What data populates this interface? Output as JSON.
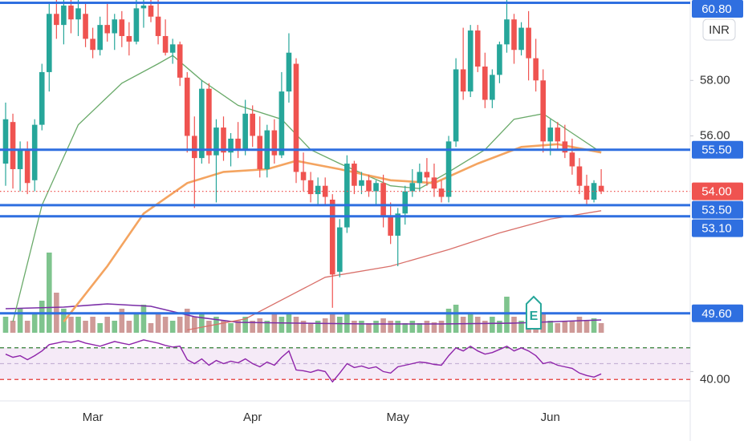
{
  "chart_data": {
    "type": "candlestick",
    "categories": [
      null,
      null,
      null,
      null,
      null,
      null,
      null,
      null,
      null,
      null,
      null,
      null,
      "Mar",
      null,
      null,
      null,
      null,
      null,
      null,
      null,
      null,
      null,
      null,
      null,
      null,
      null,
      null,
      null,
      null,
      null,
      null,
      null,
      null,
      null,
      "Apr",
      null,
      null,
      null,
      null,
      null,
      null,
      null,
      null,
      null,
      null,
      null,
      null,
      null,
      null,
      null,
      null,
      null,
      null,
      null,
      "May",
      null,
      null,
      null,
      null,
      null,
      null,
      null,
      null,
      null,
      null,
      null,
      null,
      null,
      null,
      null,
      null,
      null,
      null,
      null,
      null,
      "Jun",
      null,
      null,
      null,
      null,
      null,
      null,
      null
    ],
    "open": [
      55.0,
      56.5,
      54.8,
      55.5,
      54.4,
      56.4,
      58.3,
      60.4,
      60.0,
      60.7,
      60.2,
      60.4,
      59.5,
      59.1,
      60.0,
      59.7,
      60.2,
      59.6,
      59.4,
      60.6,
      60.7,
      60.3,
      59.6,
      59.0,
      59.3,
      58.1,
      56.0,
      55.2,
      57.7,
      55.3,
      56.3,
      55.4,
      55.9,
      55.5,
      56.8,
      56.0,
      54.8,
      56.2,
      55.3,
      57.6,
      58.6,
      54.7,
      54.4,
      53.9,
      54.2,
      53.7,
      51.1,
      52.7,
      55.0,
      54.2,
      54.4,
      54.0,
      54.3,
      53.1,
      52.4,
      53.2,
      54.0,
      54.3,
      54.7,
      54.5,
      54.1,
      53.8,
      55.8,
      58.4,
      57.6,
      59.8,
      58.5,
      57.3,
      58.2,
      59.3,
      60.2,
      59.1,
      59.9,
      58.8,
      58.0,
      55.8,
      56.3,
      55.8,
      55.4,
      54.9,
      54.2,
      53.7,
      54.2
    ],
    "high": [
      57.2,
      56.8,
      55.8,
      55.8,
      56.6,
      58.6,
      60.8,
      60.9,
      60.9,
      60.9,
      60.9,
      60.8,
      59.9,
      60.3,
      60.8,
      60.4,
      60.5,
      60.1,
      60.9,
      60.9,
      60.9,
      60.9,
      60.2,
      59.5,
      59.4,
      58.3,
      56.7,
      58.0,
      57.9,
      56.6,
      56.7,
      56.1,
      56.5,
      57.3,
      57.1,
      56.7,
      56.4,
      56.6,
      58.3,
      59.7,
      58.8,
      55.4,
      54.7,
      54.5,
      54.5,
      53.9,
      53.0,
      55.3,
      55.1,
      54.7,
      54.6,
      54.4,
      54.6,
      53.6,
      53.4,
      54.2,
      54.8,
      55.0,
      55.2,
      55.0,
      54.4,
      56.0,
      58.8,
      59.9,
      60.0,
      60.0,
      59.0,
      58.4,
      59.4,
      60.9,
      60.4,
      60.1,
      60.5,
      59.5,
      58.4,
      56.6,
      56.5,
      56.4,
      55.9,
      55.2,
      54.6,
      54.4,
      54.8
    ],
    "low": [
      54.2,
      54.1,
      54.0,
      53.9,
      54.0,
      56.2,
      57.6,
      59.5,
      59.3,
      59.7,
      59.6,
      59.2,
      58.8,
      58.9,
      59.4,
      59.1,
      59.2,
      58.9,
      59.3,
      59.9,
      60.1,
      59.3,
      58.9,
      58.6,
      57.8,
      55.4,
      53.4,
      55.0,
      55.0,
      53.6,
      55.1,
      54.9,
      55.2,
      55.3,
      55.6,
      54.5,
      54.5,
      55.0,
      55.2,
      57.2,
      54.3,
      54.0,
      53.6,
      53.5,
      53.5,
      49.8,
      50.9,
      52.5,
      53.9,
      53.9,
      53.8,
      53.5,
      52.7,
      52.1,
      51.3,
      52.8,
      53.8,
      54.0,
      54.2,
      53.8,
      53.6,
      53.6,
      55.6,
      57.3,
      57.4,
      58.3,
      57.0,
      57.0,
      57.9,
      59.0,
      58.6,
      58.9,
      58.0,
      57.6,
      55.4,
      55.3,
      55.5,
      55.2,
      54.6,
      53.9,
      53.5,
      53.6,
      53.9
    ],
    "close": [
      56.6,
      54.8,
      55.5,
      54.3,
      56.4,
      58.3,
      60.4,
      60.0,
      60.7,
      60.2,
      60.6,
      59.5,
      59.1,
      60.0,
      59.7,
      60.2,
      59.6,
      59.4,
      60.6,
      60.7,
      60.3,
      59.6,
      59.0,
      59.3,
      58.1,
      56.0,
      55.2,
      57.7,
      55.3,
      56.3,
      55.4,
      55.9,
      55.5,
      56.8,
      56.0,
      54.8,
      56.2,
      55.3,
      57.6,
      59.0,
      54.7,
      54.4,
      53.9,
      54.2,
      53.8,
      51.0,
      52.7,
      55.0,
      54.2,
      54.4,
      54.0,
      54.3,
      53.1,
      52.4,
      53.2,
      54.0,
      54.3,
      54.7,
      54.5,
      54.1,
      53.8,
      55.8,
      58.4,
      57.6,
      59.8,
      58.5,
      57.3,
      58.2,
      59.3,
      60.2,
      59.1,
      59.9,
      58.8,
      58.0,
      55.8,
      56.3,
      55.8,
      55.4,
      54.9,
      54.2,
      53.7,
      54.3,
      54.0
    ],
    "colors": {
      "up": "#26a69a",
      "down": "#ef5350"
    },
    "ylim": [
      48.9,
      60.9
    ],
    "yticks": [
      {
        "value": 56,
        "label": "56.00"
      },
      {
        "value": 58,
        "label": "58.00"
      }
    ],
    "currency": "INR",
    "last_price": {
      "value": 54,
      "label": "54.00",
      "color": "#ef5350"
    },
    "level_color": "#2f6fe0",
    "levels": [
      {
        "value": 60.8,
        "label": "60.80"
      },
      {
        "value": 55.5,
        "label": "55.50"
      },
      {
        "value": 53.5,
        "label": "53.50"
      },
      {
        "value": 53.1,
        "label": "53.10"
      },
      {
        "value": 49.6,
        "label": "49.60"
      }
    ],
    "moving_averages": [
      {
        "color": "#6aaa6a",
        "x": [
          1,
          5,
          10,
          16,
          21,
          23,
          27,
          32,
          38,
          42,
          46,
          53,
          57,
          61,
          66,
          70,
          74,
          78,
          82
        ],
        "values": [
          49.3,
          53.5,
          56.4,
          57.9,
          58.6,
          58.9,
          58.0,
          57.1,
          56.6,
          55.5,
          55.0,
          54.2,
          54.1,
          54.7,
          55.5,
          56.6,
          56.8,
          56.1,
          55.4
        ]
      },
      {
        "color": "#f4a460",
        "x": [
          8,
          14,
          19,
          25,
          30,
          36,
          40,
          46,
          53,
          59,
          65,
          71,
          76,
          82
        ],
        "values": [
          49.3,
          51.3,
          53.2,
          54.3,
          54.7,
          54.8,
          55.1,
          54.8,
          54.4,
          54.3,
          55.0,
          55.6,
          55.7,
          55.4
        ]
      },
      {
        "color": "#d9706a",
        "x": [
          25,
          33,
          44,
          53,
          61,
          68,
          75,
          82
        ],
        "values": [
          49.0,
          49.4,
          50.9,
          51.3,
          51.9,
          52.5,
          53.0,
          53.3
        ]
      }
    ],
    "volume": {
      "ylim": [
        0,
        10
      ],
      "values": [
        2,
        1.5,
        3,
        1.5,
        2.5,
        4,
        10,
        5,
        3,
        2,
        2,
        1.5,
        2,
        1.2,
        2,
        1.5,
        3,
        1.5,
        2.5,
        3.5,
        1.2,
        2.5,
        2,
        1.5,
        2,
        3,
        2,
        2.5,
        1.5,
        2,
        1.5,
        1.2,
        1.5,
        2,
        1.5,
        1.8,
        1.5,
        2.5,
        2,
        2.5,
        2,
        1.5,
        1.2,
        1.5,
        1.8,
        2.5,
        2,
        2.5,
        1.5,
        1.5,
        1.2,
        1.5,
        1.8,
        1.5,
        1.5,
        1.2,
        1.5,
        1.2,
        1.5,
        1.3,
        1.5,
        3,
        3.5,
        2,
        2.5,
        2,
        1.5,
        2,
        1.5,
        4.5,
        2,
        1.5,
        1.8,
        2,
        2.5,
        1.5,
        1.2,
        1.5,
        1.5,
        2,
        1.5,
        1.8,
        1.2
      ],
      "colors": {
        "up": "#7fc48e",
        "down": "#cf9a98"
      },
      "ma": {
        "color": "#7b2fa8",
        "x": [
          0,
          8,
          14,
          20,
          26,
          32,
          40,
          50,
          60,
          70,
          82
        ],
        "values": [
          3.0,
          3.2,
          3.6,
          3.3,
          2.0,
          1.3,
          1.2,
          1.1,
          1.1,
          1.2,
          1.6
        ]
      }
    },
    "earnings": {
      "label": "E",
      "x": 72.7
    },
    "rsi": {
      "color": "#8e24aa",
      "ylim": [
        13,
        86
      ],
      "levels": [
        70,
        50,
        30
      ],
      "yticks": [
        {
          "value": 40,
          "label": "40.00"
        }
      ],
      "values": [
        62,
        58,
        60,
        55,
        60,
        66,
        74,
        76,
        78,
        77,
        79,
        76,
        74,
        72,
        75,
        78,
        76,
        74,
        77,
        80,
        78,
        76,
        73,
        71,
        72,
        55,
        50,
        56,
        48,
        54,
        50,
        53,
        51,
        56,
        50,
        46,
        52,
        48,
        58,
        66,
        42,
        41,
        39,
        42,
        40,
        27,
        38,
        50,
        45,
        47,
        44,
        46,
        40,
        38,
        46,
        48,
        50,
        52,
        51,
        49,
        48,
        60,
        70,
        66,
        72,
        66,
        62,
        64,
        68,
        72,
        66,
        70,
        66,
        60,
        50,
        52,
        48,
        46,
        44,
        38,
        35,
        33,
        37
      ]
    }
  }
}
